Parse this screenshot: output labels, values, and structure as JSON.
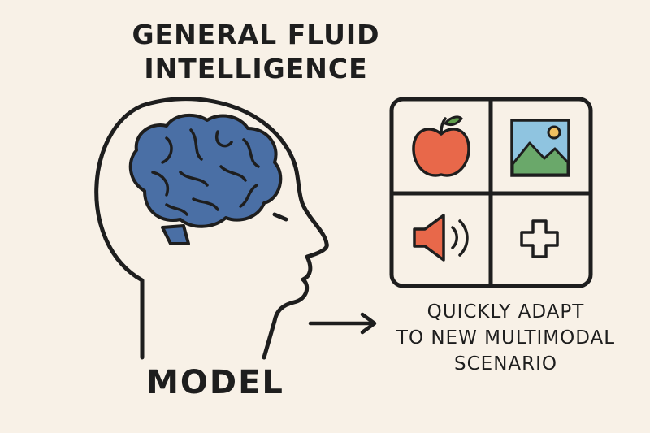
{
  "title": {
    "line1": "GENERAL FLUID",
    "line2": "INTELLIGENCE"
  },
  "model_label": "MODEL",
  "caption": {
    "line1": "QUICKLY ADAPT",
    "line2": "TO NEW MULTIMODAL",
    "line3": "SCENARIO"
  },
  "colors": {
    "background": "#f8f1e7",
    "outline": "#1e1e1e",
    "brain": "#4a6fa5",
    "apple": "#e8684a",
    "leaf": "#5f9e4b",
    "sky": "#8fc4e0",
    "mountain": "#6aa86a",
    "sun": "#f0c060",
    "speaker": "#e8684a"
  },
  "icons": [
    "apple-icon",
    "image-icon",
    "speaker-icon",
    "plus-icon"
  ]
}
